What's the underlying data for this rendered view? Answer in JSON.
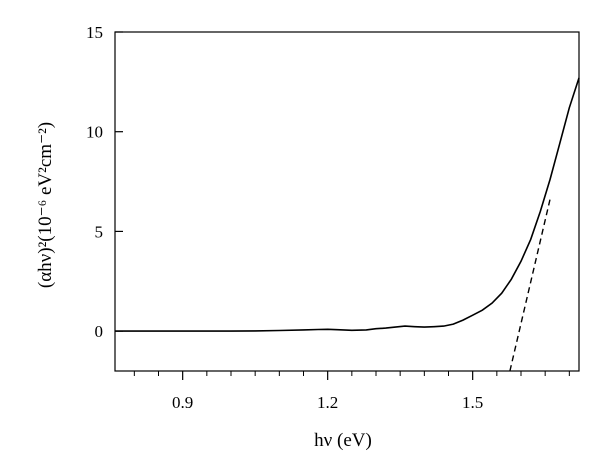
{
  "chart_data": {
    "type": "line",
    "xlim": [
      0.76,
      1.72
    ],
    "ylim": [
      -2,
      15
    ],
    "xticks": [
      0.9,
      1.2,
      1.5
    ],
    "xtick_labels": [
      "0.9",
      "1.2",
      "1.5"
    ],
    "x_minor_ticks": [
      0.8,
      0.85,
      0.95,
      1.0,
      1.05,
      1.1,
      1.15,
      1.25,
      1.3,
      1.35,
      1.4,
      1.45,
      1.55,
      1.6,
      1.65,
      1.7
    ],
    "yticks": [
      0,
      5,
      10,
      15
    ],
    "ytick_labels": [
      "0",
      "5",
      "10",
      "15"
    ],
    "grid": false,
    "xlabel": "hν (eV)",
    "ylabel": "(αhν)²(10⁻⁶ eV²cm⁻²)",
    "series": [
      {
        "style": "solid",
        "color": "#000000",
        "x": [
          0.76,
          0.8,
          0.85,
          0.9,
          0.95,
          1.0,
          1.05,
          1.1,
          1.15,
          1.18,
          1.2,
          1.22,
          1.25,
          1.28,
          1.3,
          1.32,
          1.34,
          1.36,
          1.38,
          1.4,
          1.42,
          1.44,
          1.46,
          1.48,
          1.5,
          1.52,
          1.54,
          1.56,
          1.58,
          1.6,
          1.62,
          1.64,
          1.66,
          1.68,
          1.7,
          1.72
        ],
        "y": [
          0,
          0,
          0,
          0,
          0,
          0,
          0.01,
          0.03,
          0.06,
          0.08,
          0.09,
          0.07,
          0.04,
          0.06,
          0.12,
          0.15,
          0.2,
          0.25,
          0.22,
          0.2,
          0.22,
          0.25,
          0.35,
          0.55,
          0.8,
          1.05,
          1.4,
          1.9,
          2.6,
          3.5,
          4.6,
          6.0,
          7.6,
          9.4,
          11.2,
          12.7
        ]
      },
      {
        "style": "dashed",
        "color": "#000000",
        "x": [
          1.577,
          1.66
        ],
        "y": [
          -2,
          6.6
        ]
      }
    ]
  }
}
